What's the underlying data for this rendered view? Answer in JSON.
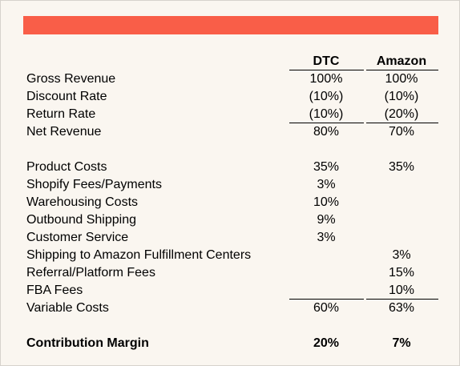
{
  "colors": {
    "banner": "#f95e48",
    "background": "#faf6f0"
  },
  "table": {
    "columns": {
      "dtc": "DTC",
      "amazon": "Amazon"
    },
    "rows": [
      {
        "label": "Gross Revenue",
        "dtc": "100%",
        "amazon": "100%"
      },
      {
        "label": "Discount Rate",
        "dtc": "(10%)",
        "amazon": "(10%)"
      },
      {
        "label": "Return Rate",
        "dtc": "(10%)",
        "amazon": "(20%)"
      },
      {
        "label": "Net Revenue",
        "dtc": "80%",
        "amazon": "70%"
      },
      {
        "label": "Product Costs",
        "dtc": "35%",
        "amazon": "35%"
      },
      {
        "label": "Shopify Fees/Payments",
        "dtc": "3%",
        "amazon": ""
      },
      {
        "label": "Warehousing Costs",
        "dtc": "10%",
        "amazon": ""
      },
      {
        "label": "Outbound Shipping",
        "dtc": "9%",
        "amazon": ""
      },
      {
        "label": "Customer Service",
        "dtc": "3%",
        "amazon": ""
      },
      {
        "label": "Shipping to Amazon Fulfillment Centers",
        "dtc": "",
        "amazon": "3%"
      },
      {
        "label": "Referral/Platform Fees",
        "dtc": "",
        "amazon": "15%"
      },
      {
        "label": "FBA Fees",
        "dtc": "",
        "amazon": "10%"
      },
      {
        "label": "Variable Costs",
        "dtc": "60%",
        "amazon": "63%"
      },
      {
        "label": "Contribution Margin",
        "dtc": "20%",
        "amazon": "7%"
      }
    ]
  }
}
